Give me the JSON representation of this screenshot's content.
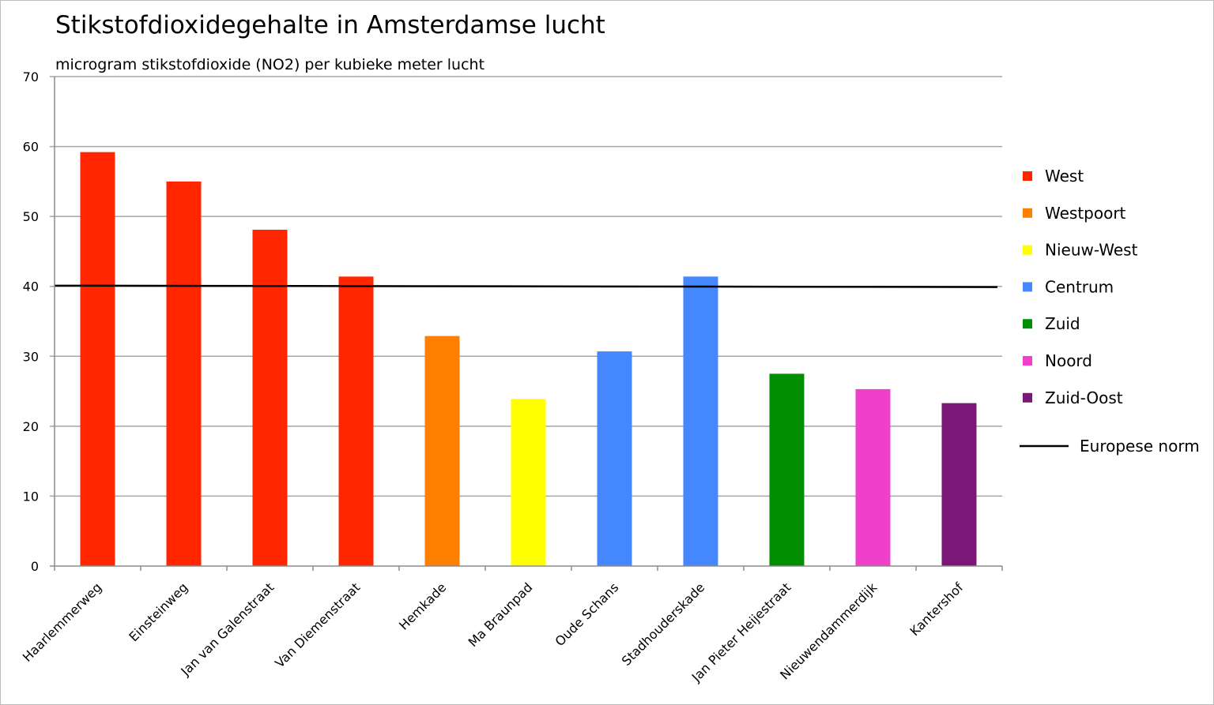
{
  "chart_data": {
    "type": "bar",
    "title": "Stikstofdioxidegehalte in Amsterdamse lucht",
    "subtitle": "microgram stikstofdioxide (NO2) per kubieke meter lucht",
    "xlabel": "",
    "ylabel": "",
    "ylim": [
      0,
      70
    ],
    "yticks": [
      0,
      10,
      20,
      30,
      40,
      50,
      60,
      70
    ],
    "grid": true,
    "legend_position": "right",
    "categories": [
      "Haarlemmerweg",
      "Einsteinweg",
      "Jan van Galenstraat",
      "Van Diemenstraat",
      "Hemkade",
      "Ma Braunpad",
      "Oude Schans",
      "Stadhouderskade",
      "Jan Pieter Heijestraat",
      "Nieuwendammerdijk",
      "Kantershof"
    ],
    "values": [
      59.2,
      55.0,
      48.1,
      41.4,
      32.9,
      23.9,
      30.7,
      41.4,
      27.5,
      25.3,
      23.3
    ],
    "groups": [
      "West",
      "West",
      "West",
      "West",
      "Westpoort",
      "Nieuw-West",
      "Centrum",
      "Centrum",
      "Zuid",
      "Noord",
      "Zuid-Oost"
    ],
    "legend": [
      {
        "name": "West",
        "color": "#ff2600"
      },
      {
        "name": "Westpoort",
        "color": "#ff7f00"
      },
      {
        "name": "Nieuw-West",
        "color": "#ffff00"
      },
      {
        "name": "Centrum",
        "color": "#4587ff"
      },
      {
        "name": "Zuid",
        "color": "#008f00"
      },
      {
        "name": "Noord",
        "color": "#ef3fcb"
      },
      {
        "name": "Zuid-Oost",
        "color": "#7b1877"
      }
    ],
    "reference_line": {
      "name": "Europese norm",
      "value_start": 40.1,
      "value_end": 39.9,
      "color": "#000000"
    }
  }
}
